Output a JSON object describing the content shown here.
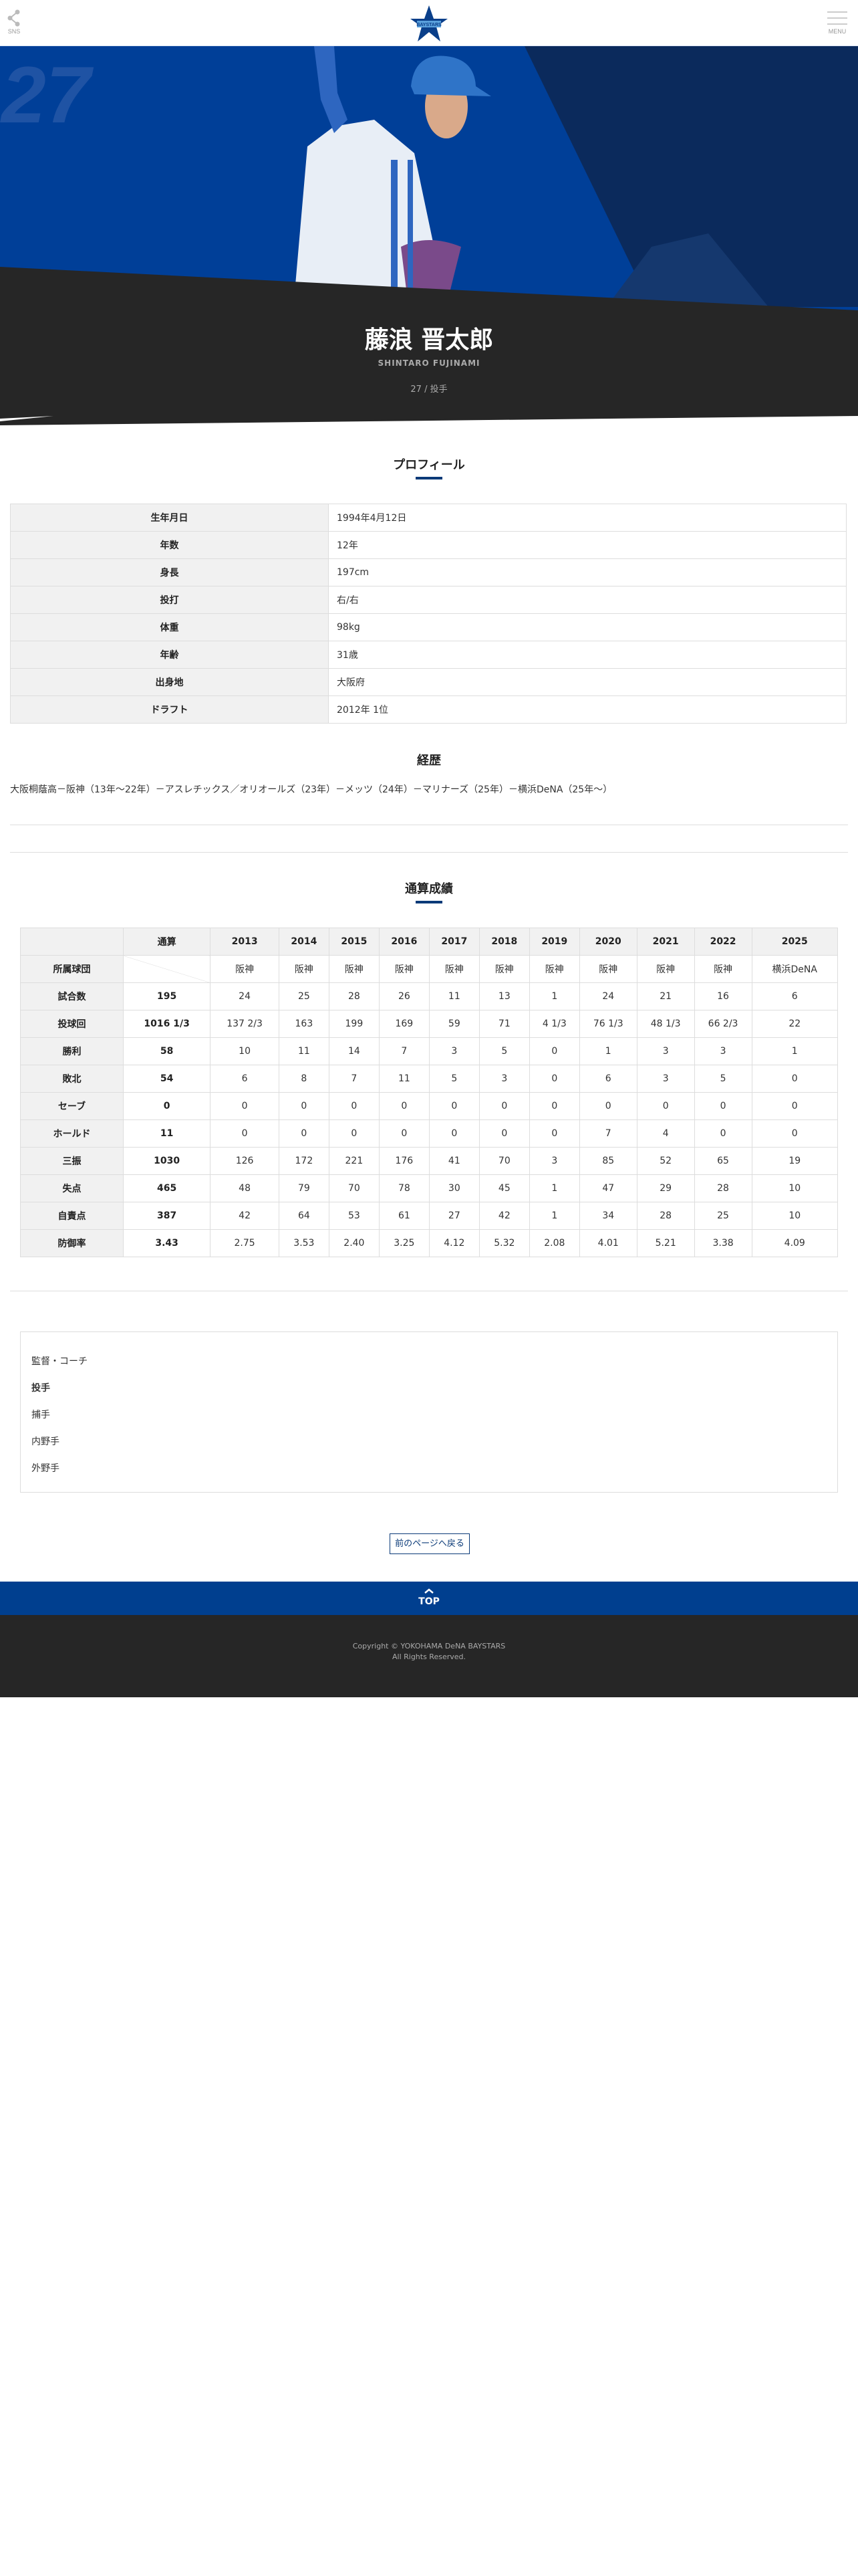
{
  "header": {
    "sns_label": "SNS",
    "menu_label": "MENU",
    "logo_text": "BAYSTARS"
  },
  "colors": {
    "brand_blue": "#003f8f",
    "dark": "#262626",
    "accent": "#0a3a78"
  },
  "player": {
    "number": "27",
    "name": "藤浪 晋太郎",
    "romaji": "SHINTARO FUJINAMI",
    "number_position": "27 / 投手"
  },
  "profile": {
    "title": "プロフィール",
    "rows": [
      {
        "label": "生年月日",
        "value": "1994年4月12日"
      },
      {
        "label": "年数",
        "value": "12年"
      },
      {
        "label": "身長",
        "value": "197cm"
      },
      {
        "label": "投打",
        "value": "右/右"
      },
      {
        "label": "体重",
        "value": "98kg"
      },
      {
        "label": "年齢",
        "value": "31歳"
      },
      {
        "label": "出身地",
        "value": "大阪府"
      },
      {
        "label": "ドラフト",
        "value": "2012年 1位"
      }
    ]
  },
  "career": {
    "title": "経歴",
    "text": "大阪桐蔭高－阪神（13年～22年）－アスレチックス／オリオールズ（23年）－メッツ（24年）－マリナーズ（25年）－横浜DeNA（25年～）"
  },
  "stats": {
    "title": "通算成績",
    "columns": [
      "通算",
      "2013",
      "2014",
      "2015",
      "2016",
      "2017",
      "2018",
      "2019",
      "2020",
      "2021",
      "2022",
      "2025"
    ],
    "team_label": "所属球団",
    "teams": [
      "",
      "阪神",
      "阪神",
      "阪神",
      "阪神",
      "阪神",
      "阪神",
      "阪神",
      "阪神",
      "阪神",
      "阪神",
      "横浜DeNA"
    ],
    "rows": [
      {
        "label": "試合数",
        "values": [
          "195",
          "24",
          "25",
          "28",
          "26",
          "11",
          "13",
          "1",
          "24",
          "21",
          "16",
          "6"
        ]
      },
      {
        "label": "投球回",
        "values": [
          "1016 1/3",
          "137 2/3",
          "163",
          "199",
          "169",
          "59",
          "71",
          "4 1/3",
          "76 1/3",
          "48 1/3",
          "66 2/3",
          "22"
        ]
      },
      {
        "label": "勝利",
        "values": [
          "58",
          "10",
          "11",
          "14",
          "7",
          "3",
          "5",
          "0",
          "1",
          "3",
          "3",
          "1"
        ]
      },
      {
        "label": "敗北",
        "values": [
          "54",
          "6",
          "8",
          "7",
          "11",
          "5",
          "3",
          "0",
          "6",
          "3",
          "5",
          "0"
        ]
      },
      {
        "label": "セーブ",
        "values": [
          "0",
          "0",
          "0",
          "0",
          "0",
          "0",
          "0",
          "0",
          "0",
          "0",
          "0",
          "0"
        ]
      },
      {
        "label": "ホールド",
        "values": [
          "11",
          "0",
          "0",
          "0",
          "0",
          "0",
          "0",
          "0",
          "7",
          "4",
          "0",
          "0"
        ]
      },
      {
        "label": "三振",
        "values": [
          "1030",
          "126",
          "172",
          "221",
          "176",
          "41",
          "70",
          "3",
          "85",
          "52",
          "65",
          "19"
        ]
      },
      {
        "label": "失点",
        "values": [
          "465",
          "48",
          "79",
          "70",
          "78",
          "30",
          "45",
          "1",
          "47",
          "29",
          "28",
          "10"
        ]
      },
      {
        "label": "自責点",
        "values": [
          "387",
          "42",
          "64",
          "53",
          "61",
          "27",
          "42",
          "1",
          "34",
          "28",
          "25",
          "10"
        ]
      },
      {
        "label": "防御率",
        "values": [
          "3.43",
          "2.75",
          "3.53",
          "2.40",
          "3.25",
          "4.12",
          "5.32",
          "2.08",
          "4.01",
          "5.21",
          "3.38",
          "4.09"
        ]
      }
    ]
  },
  "positions": [
    "監督・コーチ",
    "投手",
    "捕手",
    "内野手",
    "外野手"
  ],
  "back_button": "前のページへ戻る",
  "top_button": "TOP",
  "footer": {
    "line1": "Copyright © YOKOHAMA DeNA BAYSTARS",
    "line2": "All Rights Reserved."
  }
}
